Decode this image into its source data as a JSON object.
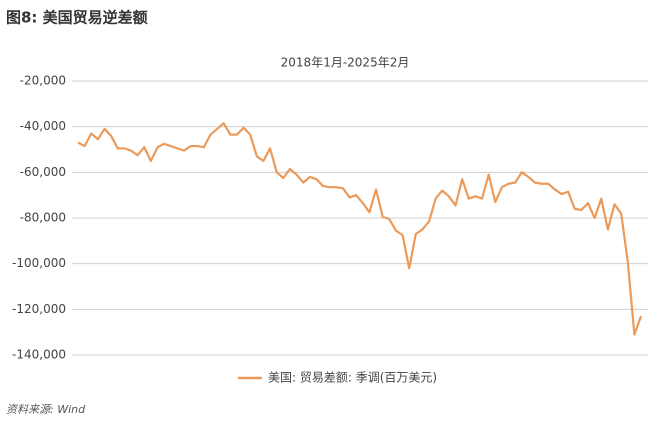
{
  "chart_data": {
    "type": "line",
    "title": "图8: 美国贸易逆差额",
    "subtitle": "2018年1月-2025年2月",
    "source": "资料来源: Wind",
    "series": [
      {
        "name": "美国: 贸易差额: 季调(百万美元)",
        "color": "#eb9a5a",
        "values": [
          -47000,
          -48500,
          -43000,
          -45500,
          -41000,
          -44000,
          -49500,
          -49500,
          -50500,
          -52500,
          -49000,
          -55000,
          -49000,
          -47500,
          -48500,
          -49500,
          -50500,
          -48500,
          -48500,
          -49000,
          -43500,
          -41000,
          -38500,
          -43500,
          -43500,
          -40500,
          -43500,
          -53000,
          -55000,
          -49500,
          -60000,
          -62500,
          -58500,
          -61000,
          -64500,
          -62000,
          -63000,
          -66000,
          -66500,
          -66500,
          -67000,
          -71000,
          -70000,
          -73500,
          -77500,
          -67500,
          -79500,
          -80500,
          -85500,
          -87500,
          -102000,
          -87000,
          -85000,
          -81500,
          -71500,
          -68000,
          -70500,
          -74500,
          -63000,
          -71500,
          -70500,
          -71500,
          -61000,
          -73000,
          -66500,
          -65000,
          -64500,
          -60000,
          -62000,
          -64500,
          -65000,
          -65000,
          -67500,
          -69500,
          -68500,
          -76000,
          -76500,
          -73500,
          -80000,
          -71500,
          -85000,
          -74000,
          -78000,
          -99000,
          -131000,
          -123000
        ]
      }
    ],
    "ylim": [
      -140000,
      -20000
    ],
    "yticks": [
      {
        "value": -20000,
        "label": "-20,000"
      },
      {
        "value": -40000,
        "label": "-40,000"
      },
      {
        "value": -60000,
        "label": "-60,000"
      },
      {
        "value": -80000,
        "label": "-80,000"
      },
      {
        "value": -100000,
        "label": "-100,000"
      },
      {
        "value": -120000,
        "label": "-120,000"
      },
      {
        "value": -140000,
        "label": "-140,000"
      }
    ],
    "grid": true
  }
}
